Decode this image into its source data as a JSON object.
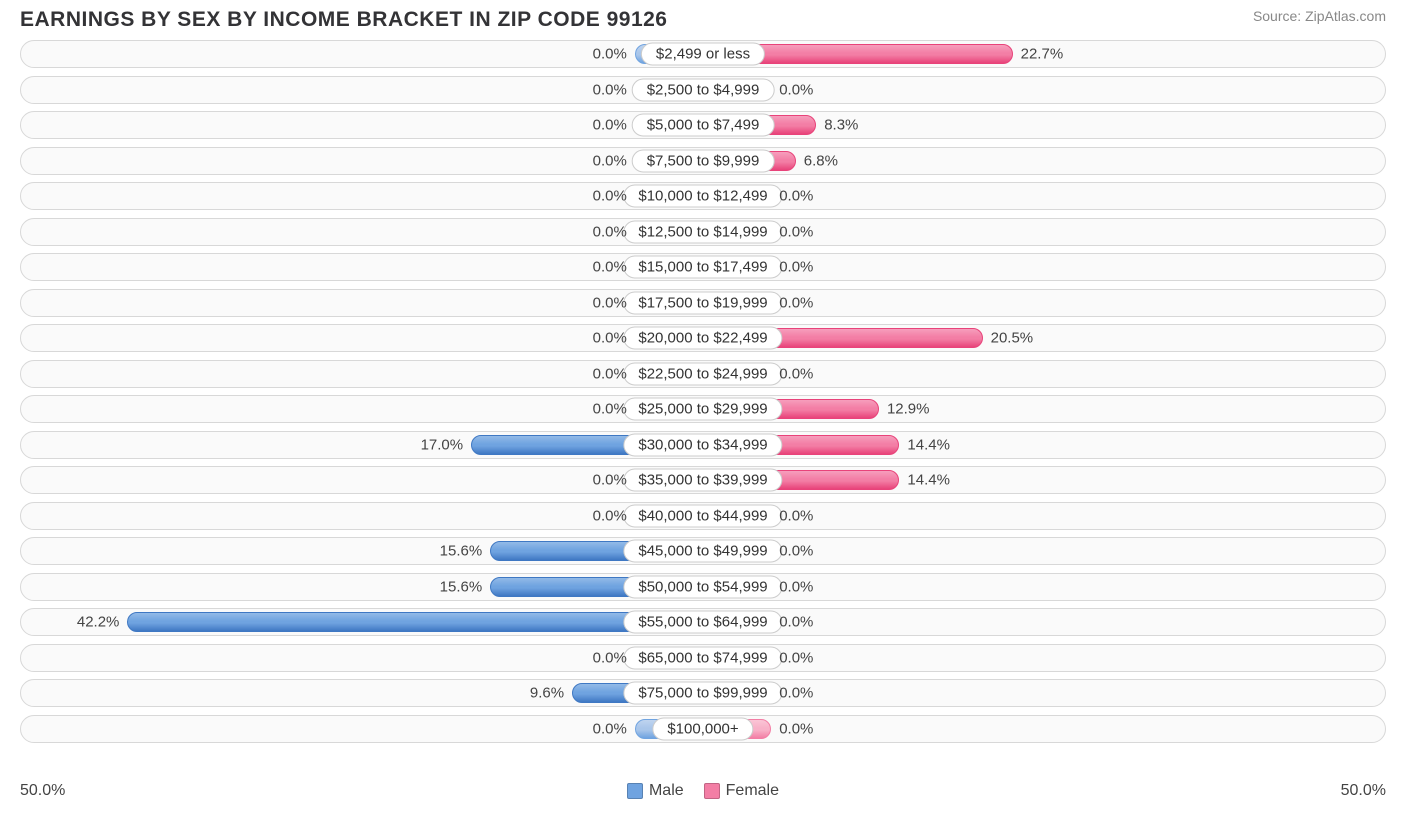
{
  "title": "EARNINGS BY SEX BY INCOME BRACKET IN ZIP CODE 99126",
  "source": "Source: ZipAtlas.com",
  "chart": {
    "type": "diverging-bar",
    "axis_max_pct": 50.0,
    "axis_label_left": "50.0%",
    "axis_label_right": "50.0%",
    "stub_pct": 5.0,
    "row_background": "#fafafa",
    "row_border": "#d8d8d8",
    "label_bg": "#ffffff",
    "label_border": "#cccccc",
    "text_color": "#444444",
    "title_color": "#333336",
    "male_fill": "#6fa3e0",
    "male_stroke": "#3f78c3",
    "female_fill": "#f37ea5",
    "female_stroke": "#e8437a",
    "male_stub_fill": "#a9c6ea",
    "female_stub_fill": "#f8b1c8",
    "rows": [
      {
        "label": "$2,499 or less",
        "male": 0.0,
        "female": 22.7
      },
      {
        "label": "$2,500 to $4,999",
        "male": 0.0,
        "female": 0.0
      },
      {
        "label": "$5,000 to $7,499",
        "male": 0.0,
        "female": 8.3
      },
      {
        "label": "$7,500 to $9,999",
        "male": 0.0,
        "female": 6.8
      },
      {
        "label": "$10,000 to $12,499",
        "male": 0.0,
        "female": 0.0
      },
      {
        "label": "$12,500 to $14,999",
        "male": 0.0,
        "female": 0.0
      },
      {
        "label": "$15,000 to $17,499",
        "male": 0.0,
        "female": 0.0
      },
      {
        "label": "$17,500 to $19,999",
        "male": 0.0,
        "female": 0.0
      },
      {
        "label": "$20,000 to $22,499",
        "male": 0.0,
        "female": 20.5
      },
      {
        "label": "$22,500 to $24,999",
        "male": 0.0,
        "female": 0.0
      },
      {
        "label": "$25,000 to $29,999",
        "male": 0.0,
        "female": 12.9
      },
      {
        "label": "$30,000 to $34,999",
        "male": 17.0,
        "female": 14.4
      },
      {
        "label": "$35,000 to $39,999",
        "male": 0.0,
        "female": 14.4
      },
      {
        "label": "$40,000 to $44,999",
        "male": 0.0,
        "female": 0.0
      },
      {
        "label": "$45,000 to $49,999",
        "male": 15.6,
        "female": 0.0
      },
      {
        "label": "$50,000 to $54,999",
        "male": 15.6,
        "female": 0.0
      },
      {
        "label": "$55,000 to $64,999",
        "male": 42.2,
        "female": 0.0
      },
      {
        "label": "$65,000 to $74,999",
        "male": 0.0,
        "female": 0.0
      },
      {
        "label": "$75,000 to $99,999",
        "male": 9.6,
        "female": 0.0
      },
      {
        "label": "$100,000+",
        "male": 0.0,
        "female": 0.0
      }
    ],
    "legend": {
      "male": "Male",
      "female": "Female"
    }
  }
}
